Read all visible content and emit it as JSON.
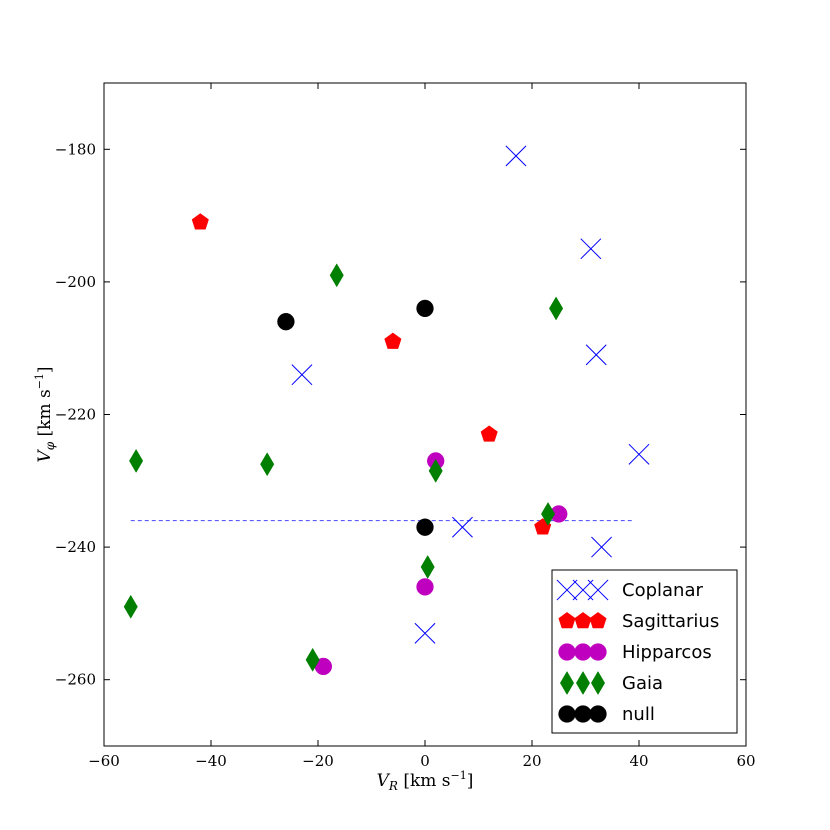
{
  "chart_data": {
    "type": "scatter",
    "title": "",
    "xlabel": "V_R [km s^-1]",
    "ylabel": "V_φ [km s^-1]",
    "xlim": [
      -60,
      60
    ],
    "ylim": [
      -270,
      -170
    ],
    "x_ticks": [
      -60,
      -40,
      -20,
      0,
      20,
      40,
      60
    ],
    "y_ticks": [
      -260,
      -240,
      -220,
      -200,
      -180
    ],
    "grid": false,
    "legend_position": "lower-right",
    "reference_line": {
      "style": "dashed",
      "color": "#4444ff",
      "y": -236,
      "x_range": [
        -55,
        39
      ]
    },
    "series": [
      {
        "name": "Coplanar",
        "marker": "x",
        "color": "#0000ff",
        "points": [
          {
            "x": 17,
            "y": -181
          },
          {
            "x": 31,
            "y": -195
          },
          {
            "x": 32,
            "y": -211
          },
          {
            "x": -23,
            "y": -214
          },
          {
            "x": 40,
            "y": -226
          },
          {
            "x": 7,
            "y": -237
          },
          {
            "x": 33,
            "y": -240
          },
          {
            "x": 0,
            "y": -253
          }
        ]
      },
      {
        "name": "Sagittarius",
        "marker": "pentagon",
        "color": "#ff0000",
        "points": [
          {
            "x": -42,
            "y": -191
          },
          {
            "x": -6,
            "y": -209
          },
          {
            "x": 12,
            "y": -223
          },
          {
            "x": 22,
            "y": -237
          }
        ]
      },
      {
        "name": "Hipparcos",
        "marker": "circle",
        "color": "#bf00bf",
        "points": [
          {
            "x": 2,
            "y": -227
          },
          {
            "x": 25,
            "y": -235
          },
          {
            "x": 0,
            "y": -246
          },
          {
            "x": -19,
            "y": -258
          }
        ]
      },
      {
        "name": "Gaia",
        "marker": "diamond",
        "color": "#007f00",
        "points": [
          {
            "x": -16.5,
            "y": -199
          },
          {
            "x": 24.5,
            "y": -204
          },
          {
            "x": -54,
            "y": -227
          },
          {
            "x": -29.5,
            "y": -227.5
          },
          {
            "x": 2,
            "y": -228.5
          },
          {
            "x": 23,
            "y": -235
          },
          {
            "x": 0.5,
            "y": -243
          },
          {
            "x": -55,
            "y": -249
          },
          {
            "x": -21,
            "y": -257
          }
        ]
      },
      {
        "name": "null",
        "marker": "circle",
        "color": "#000000",
        "points": [
          {
            "x": -26,
            "y": -206
          },
          {
            "x": 0,
            "y": -204
          },
          {
            "x": 0,
            "y": -237
          }
        ]
      }
    ]
  }
}
